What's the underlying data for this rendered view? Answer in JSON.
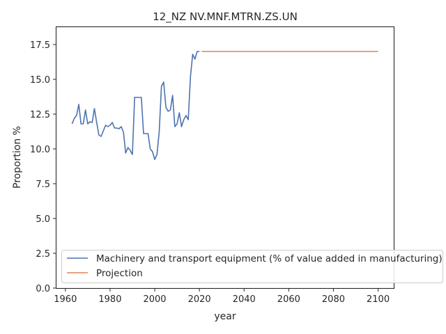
{
  "chart_data": {
    "type": "line",
    "title": "12_NZ NV.MNF.MTRN.ZS.UN",
    "xlabel": "year",
    "ylabel": "Proportion %",
    "xlim": [
      1956,
      2107
    ],
    "ylim": [
      0,
      18.75
    ],
    "xticks": [
      1960,
      1980,
      2000,
      2020,
      2040,
      2060,
      2080,
      2100
    ],
    "yticks": [
      0.0,
      2.5,
      5.0,
      7.5,
      10.0,
      12.5,
      15.0,
      17.5
    ],
    "ytick_labels": [
      "0.0",
      "2.5",
      "5.0",
      "7.5",
      "10.0",
      "12.5",
      "15.0",
      "17.5"
    ],
    "grid": false,
    "legend_position": "lower-right",
    "series": [
      {
        "name": "Machinery and transport equipment (% of value added in manufacturing)",
        "color": "#4c72b0",
        "x": [
          1963,
          1964,
          1965,
          1966,
          1967,
          1968,
          1969,
          1970,
          1971,
          1972,
          1973,
          1974,
          1975,
          1976,
          1977,
          1978,
          1979,
          1980,
          1981,
          1982,
          1983,
          1984,
          1985,
          1986,
          1987,
          1988,
          1989,
          1990,
          1991,
          1992,
          1993,
          1994,
          1995,
          1996,
          1997,
          1998,
          1999,
          2000,
          2001,
          2002,
          2003,
          2004,
          2005,
          2006,
          2007,
          2008,
          2009,
          2010,
          2011,
          2012,
          2013,
          2014,
          2015,
          2016,
          2017,
          2018,
          2019,
          2020
        ],
        "y": [
          11.8,
          12.2,
          12.4,
          13.2,
          11.8,
          11.8,
          12.8,
          11.8,
          11.95,
          11.9,
          12.9,
          11.9,
          11.0,
          10.9,
          11.3,
          11.7,
          11.6,
          11.7,
          11.9,
          11.5,
          11.5,
          11.45,
          11.6,
          11.2,
          9.7,
          10.1,
          9.9,
          9.6,
          13.7,
          13.7,
          13.7,
          13.7,
          11.1,
          11.1,
          11.1,
          10.0,
          9.8,
          9.25,
          9.6,
          11.2,
          14.5,
          14.8,
          13.0,
          12.7,
          12.8,
          13.85,
          11.6,
          11.8,
          12.6,
          11.6,
          12.1,
          12.4,
          12.1,
          15.2,
          16.8,
          16.45,
          17.0,
          17.0
        ]
      },
      {
        "name": "Projection",
        "color": "#dd8452",
        "x": [
          2021,
          2100
        ],
        "y": [
          17.0,
          17.0
        ]
      }
    ]
  }
}
